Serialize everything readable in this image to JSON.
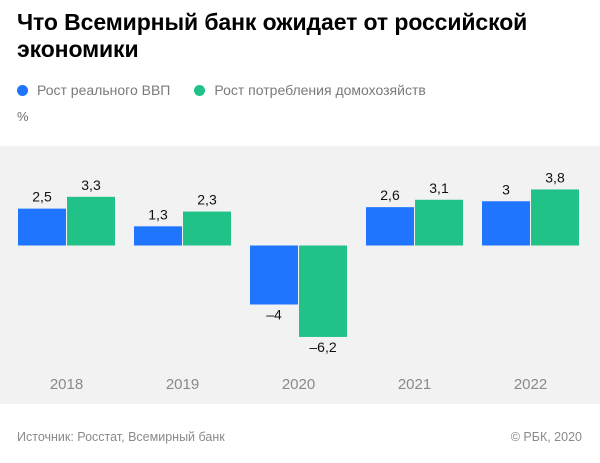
{
  "title": "Что Всемирный банк ожидает от российской экономики",
  "unit_label": "%",
  "source": "Источник: Росстат, Всемирный банк",
  "copyright": "© РБК, 2020",
  "colors": {
    "series_gdp": "#1f75fe",
    "series_consumption": "#21c288",
    "band": "#f2f2f2",
    "year_label": "#8a8a8a"
  },
  "chart_data": {
    "type": "bar",
    "title": "Что Всемирный банк ожидает от российской экономики",
    "ylabel": "%",
    "categories": [
      "2018",
      "2019",
      "2020",
      "2021",
      "2022"
    ],
    "series": [
      {
        "name": "Рост реального ВВП",
        "values": [
          2.5,
          1.3,
          -4,
          2.6,
          3
        ],
        "labels": [
          "2,5",
          "1,3",
          "–4",
          "2,6",
          "3"
        ]
      },
      {
        "name": "Рост потребления домохозяйств",
        "values": [
          3.3,
          2.3,
          -6.2,
          3.1,
          3.8
        ],
        "labels": [
          "3,3",
          "2,3",
          "–6,2",
          "3,1",
          "3,8"
        ]
      }
    ],
    "ylim": [
      -6.2,
      3.8
    ],
    "grid": false,
    "legend": "top-left"
  }
}
